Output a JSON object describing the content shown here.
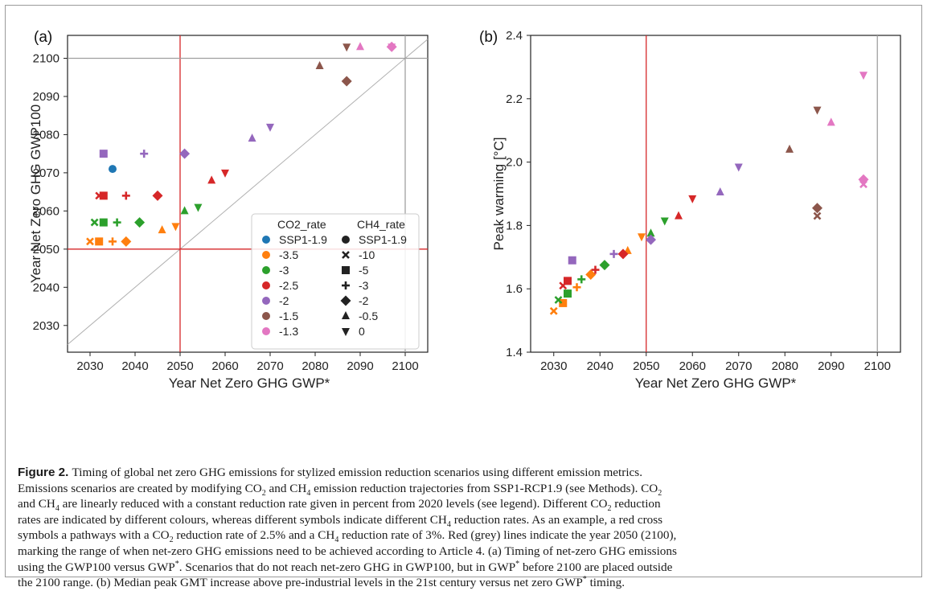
{
  "chart_data": [
    {
      "panel_label": "(a)",
      "type": "scatter",
      "xlabel": "Year Net Zero GHG GWP*",
      "ylabel": "Year Net Zero GHG GWP100",
      "xlim": [
        2025,
        2105
      ],
      "ylim": [
        2023,
        2106
      ],
      "xticks": [
        2030,
        2040,
        2050,
        2060,
        2070,
        2080,
        2090,
        2100
      ],
      "yticks": [
        2030,
        2040,
        2050,
        2060,
        2070,
        2080,
        2090,
        2100
      ],
      "reference_lines": {
        "red": 2050,
        "grey": 2100,
        "diagonal": true
      },
      "points": [
        {
          "x": 2035,
          "y": 2071,
          "co2": "SSP1-1.9",
          "ch4": "SSP1-1.9"
        },
        {
          "x": 2033,
          "y": 2075,
          "co2": "-2",
          "ch4": "-5"
        },
        {
          "x": 2042,
          "y": 2075,
          "co2": "-2",
          "ch4": "-3"
        },
        {
          "x": 2051,
          "y": 2075,
          "co2": "-2",
          "ch4": "-2"
        },
        {
          "x": 2066,
          "y": 2079,
          "co2": "-2",
          "ch4": "-0.5"
        },
        {
          "x": 2070,
          "y": 2082,
          "co2": "-2",
          "ch4": "0"
        },
        {
          "x": 2032,
          "y": 2064,
          "co2": "-2.5",
          "ch4": "-10"
        },
        {
          "x": 2033,
          "y": 2064,
          "co2": "-2.5",
          "ch4": "-5"
        },
        {
          "x": 2038,
          "y": 2064,
          "co2": "-2.5",
          "ch4": "-3"
        },
        {
          "x": 2045,
          "y": 2064,
          "co2": "-2.5",
          "ch4": "-2"
        },
        {
          "x": 2057,
          "y": 2068,
          "co2": "-2.5",
          "ch4": "-0.5"
        },
        {
          "x": 2060,
          "y": 2070,
          "co2": "-2.5",
          "ch4": "0"
        },
        {
          "x": 2031,
          "y": 2057,
          "co2": "-3",
          "ch4": "-10"
        },
        {
          "x": 2033,
          "y": 2057,
          "co2": "-3",
          "ch4": "-5"
        },
        {
          "x": 2036,
          "y": 2057,
          "co2": "-3",
          "ch4": "-3"
        },
        {
          "x": 2041,
          "y": 2057,
          "co2": "-3",
          "ch4": "-2"
        },
        {
          "x": 2051,
          "y": 2060,
          "co2": "-3",
          "ch4": "-0.5"
        },
        {
          "x": 2054,
          "y": 2061,
          "co2": "-3",
          "ch4": "0"
        },
        {
          "x": 2030,
          "y": 2052,
          "co2": "-3.5",
          "ch4": "-10"
        },
        {
          "x": 2032,
          "y": 2052,
          "co2": "-3.5",
          "ch4": "-5"
        },
        {
          "x": 2035,
          "y": 2052,
          "co2": "-3.5",
          "ch4": "-3"
        },
        {
          "x": 2038,
          "y": 2052,
          "co2": "-3.5",
          "ch4": "-2"
        },
        {
          "x": 2046,
          "y": 2055,
          "co2": "-3.5",
          "ch4": "-0.5"
        },
        {
          "x": 2049,
          "y": 2056,
          "co2": "-3.5",
          "ch4": "0"
        },
        {
          "x": 2081,
          "y": 2098,
          "co2": "-1.5",
          "ch4": "-0.5"
        },
        {
          "x": 2087,
          "y": 2094,
          "co2": "-1.5",
          "ch4": "-2"
        },
        {
          "x": 2087,
          "y": 2103,
          "co2": "-1.5",
          "ch4": "0"
        },
        {
          "x": 2090,
          "y": 2103,
          "co2": "-1.3",
          "ch4": "-0.5"
        },
        {
          "x": 2097,
          "y": 2103,
          "co2": "-1.3",
          "ch4": "-2"
        },
        {
          "x": 2097,
          "y": 2103,
          "co2": "-1.3",
          "ch4": "0"
        }
      ],
      "legend": {
        "placement": "lower-right",
        "co2_title": "CO2_rate",
        "ch4_title": "CH4_rate",
        "co2_entries": [
          {
            "label": "SSP1-1.9",
            "color": "#1f77b4"
          },
          {
            "label": "-3.5",
            "color": "#ff7f0e"
          },
          {
            "label": "-3",
            "color": "#2ca02c"
          },
          {
            "label": "-2.5",
            "color": "#d62728"
          },
          {
            "label": "-2",
            "color": "#9467bd"
          },
          {
            "label": "-1.5",
            "color": "#8c564b"
          },
          {
            "label": "-1.3",
            "color": "#e377c2"
          }
        ],
        "ch4_entries": [
          {
            "label": "SSP1-1.9",
            "marker": "circle"
          },
          {
            "label": "-10",
            "marker": "x"
          },
          {
            "label": "-5",
            "marker": "square"
          },
          {
            "label": "-3",
            "marker": "plus"
          },
          {
            "label": "-2",
            "marker": "diamond"
          },
          {
            "label": "-0.5",
            "marker": "triangle-up"
          },
          {
            "label": "0",
            "marker": "triangle-down"
          }
        ]
      }
    },
    {
      "panel_label": "(b)",
      "type": "scatter",
      "xlabel": "Year Net Zero GHG GWP*",
      "ylabel": "Peak warming [°C]",
      "xlim": [
        2025,
        2105
      ],
      "ylim": [
        1.4,
        2.4
      ],
      "xticks": [
        2030,
        2040,
        2050,
        2060,
        2070,
        2080,
        2090,
        2100
      ],
      "yticks": [
        1.4,
        1.6,
        1.8,
        2.0,
        2.2,
        2.4
      ],
      "yticklabels": [
        "1.4",
        "1.6",
        "1.8",
        "2.0",
        "2.2",
        "2.4"
      ],
      "reference_lines": {
        "red": 2050,
        "grey": 2100
      },
      "points": [
        {
          "x": 2030,
          "y": 1.53,
          "co2": "-3.5",
          "ch4": "-10"
        },
        {
          "x": 2032,
          "y": 1.555,
          "co2": "-3.5",
          "ch4": "-5"
        },
        {
          "x": 2035,
          "y": 1.605,
          "co2": "-3.5",
          "ch4": "-3"
        },
        {
          "x": 2038,
          "y": 1.645,
          "co2": "-3.5",
          "ch4": "-2"
        },
        {
          "x": 2046,
          "y": 1.72,
          "co2": "-3.5",
          "ch4": "-0.5"
        },
        {
          "x": 2049,
          "y": 1.765,
          "co2": "-3.5",
          "ch4": "0"
        },
        {
          "x": 2031,
          "y": 1.565,
          "co2": "-3",
          "ch4": "-10"
        },
        {
          "x": 2033,
          "y": 1.585,
          "co2": "-3",
          "ch4": "-5"
        },
        {
          "x": 2036,
          "y": 1.63,
          "co2": "-3",
          "ch4": "-3"
        },
        {
          "x": 2041,
          "y": 1.675,
          "co2": "-3",
          "ch4": "-2"
        },
        {
          "x": 2051,
          "y": 1.775,
          "co2": "-3",
          "ch4": "-0.5"
        },
        {
          "x": 2054,
          "y": 1.815,
          "co2": "-3",
          "ch4": "0"
        },
        {
          "x": 2032,
          "y": 1.61,
          "co2": "-2.5",
          "ch4": "-10"
        },
        {
          "x": 2033,
          "y": 1.625,
          "co2": "-2.5",
          "ch4": "-5"
        },
        {
          "x": 2039,
          "y": 1.66,
          "co2": "-2.5",
          "ch4": "-3"
        },
        {
          "x": 2045,
          "y": 1.71,
          "co2": "-2.5",
          "ch4": "-2"
        },
        {
          "x": 2057,
          "y": 1.83,
          "co2": "-2.5",
          "ch4": "-0.5"
        },
        {
          "x": 2060,
          "y": 1.885,
          "co2": "-2.5",
          "ch4": "0"
        },
        {
          "x": 2034,
          "y": 1.69,
          "co2": "-2",
          "ch4": "-5"
        },
        {
          "x": 2043,
          "y": 1.71,
          "co2": "-2",
          "ch4": "-3"
        },
        {
          "x": 2051,
          "y": 1.755,
          "co2": "-2",
          "ch4": "-2"
        },
        {
          "x": 2066,
          "y": 1.905,
          "co2": "-2",
          "ch4": "-0.5"
        },
        {
          "x": 2070,
          "y": 1.985,
          "co2": "-2",
          "ch4": "0"
        },
        {
          "x": 2081,
          "y": 2.04,
          "co2": "-1.5",
          "ch4": "-0.5"
        },
        {
          "x": 2087,
          "y": 2.165,
          "co2": "-1.5",
          "ch4": "0"
        },
        {
          "x": 2087,
          "y": 1.855,
          "co2": "-1.5",
          "ch4": "-2"
        },
        {
          "x": 2087,
          "y": 1.83,
          "co2": "-1.5",
          "ch4": "-10"
        },
        {
          "x": 2090,
          "y": 2.125,
          "co2": "-1.3",
          "ch4": "-0.5"
        },
        {
          "x": 2097,
          "y": 2.275,
          "co2": "-1.3",
          "ch4": "0"
        },
        {
          "x": 2097,
          "y": 1.945,
          "co2": "-1.3",
          "ch4": "-2"
        },
        {
          "x": 2097,
          "y": 1.93,
          "co2": "-1.3",
          "ch4": "-10"
        }
      ]
    }
  ],
  "caption": {
    "label": "Figure 2.",
    "lines": [
      [
        {
          "t": "Timing of global net zero GHG emissions for stylized emission reduction scenarios using different emission metrics."
        }
      ],
      [
        {
          "t": "Emissions scenarios are created by modifying CO"
        },
        {
          "t": "2",
          "s": "sub"
        },
        {
          "t": " and CH"
        },
        {
          "t": "4",
          "s": "sub"
        },
        {
          "t": " emission reduction trajectories from SSP1-RCP1.9 (see Methods). CO"
        },
        {
          "t": "2",
          "s": "sub"
        }
      ],
      [
        {
          "t": "and CH"
        },
        {
          "t": "4",
          "s": "sub"
        },
        {
          "t": " are linearly reduced with a constant reduction rate given in percent from 2020 levels (see legend). Different CO"
        },
        {
          "t": "2",
          "s": "sub"
        },
        {
          "t": " reduction"
        }
      ],
      [
        {
          "t": "rates are indicated by different colours, whereas different symbols indicate different CH"
        },
        {
          "t": "4",
          "s": "sub"
        },
        {
          "t": " reduction rates. As an example, a red cross"
        }
      ],
      [
        {
          "t": "symbols a pathways with a CO"
        },
        {
          "t": "2",
          "s": "sub"
        },
        {
          "t": " reduction rate of 2.5% and a CH"
        },
        {
          "t": "4",
          "s": "sub"
        },
        {
          "t": " reduction rate of 3%. Red (grey) lines indicate the year 2050 (2100),"
        }
      ],
      [
        {
          "t": "marking the range of when net-zero GHG emissions need to be achieved according to Article 4. (a) Timing of net-zero GHG emissions"
        }
      ],
      [
        {
          "t": "using the GWP100 versus GWP"
        },
        {
          "t": "*",
          "s": "sup"
        },
        {
          "t": ". Scenarios that do not reach net-zero GHG in GWP100, but in GWP"
        },
        {
          "t": "*",
          "s": "sup"
        },
        {
          "t": " before 2100 are placed outside"
        }
      ],
      [
        {
          "t": "the 2100 range. (b) Median peak GMT increase above pre-industrial levels in the 21st century versus net zero GWP"
        },
        {
          "t": "*",
          "s": "sup"
        },
        {
          "t": " timing."
        }
      ]
    ]
  }
}
